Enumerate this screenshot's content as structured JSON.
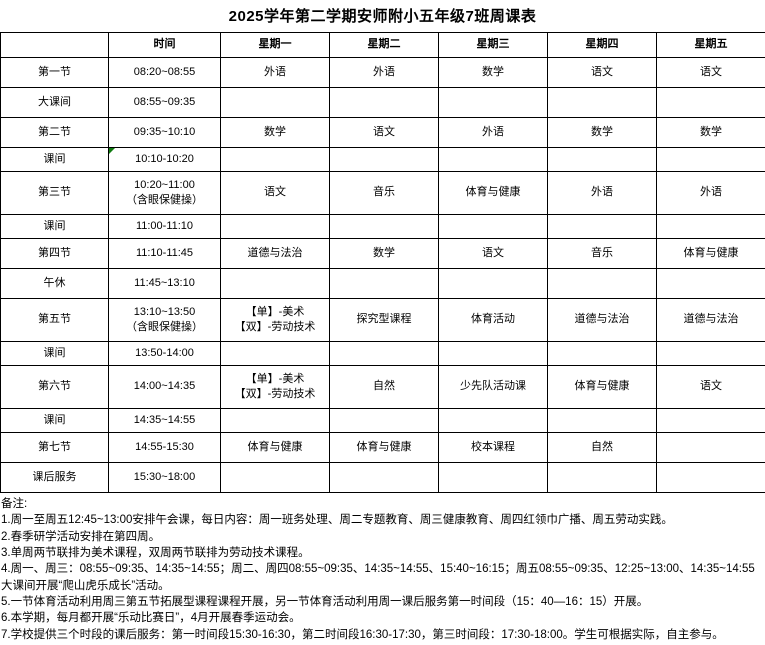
{
  "title": "2025学年第二学期安师附小五年级7班周课表",
  "colors": {
    "border": "#000000",
    "marker_green": "#0f7b0f",
    "text": "#000000",
    "background": "#ffffff"
  },
  "table": {
    "headers": [
      "",
      "时间",
      "星期一",
      "星期二",
      "星期三",
      "星期四",
      "星期五"
    ],
    "rows": [
      {
        "label": "第一节",
        "time": "08:20~08:55",
        "cells": [
          "外语",
          "外语",
          "数学",
          "语文",
          "语文"
        ],
        "kind": "normal",
        "marker": false
      },
      {
        "label": "大课间",
        "time": "08:55~09:35",
        "cells": [
          "",
          "",
          "",
          "",
          ""
        ],
        "kind": "normal",
        "marker": false
      },
      {
        "label": "第二节",
        "time": "09:35~10:10",
        "cells": [
          "数学",
          "语文",
          "外语",
          "数学",
          "数学"
        ],
        "kind": "normal",
        "marker": false
      },
      {
        "label": "课间",
        "time": "10:10-10:20",
        "cells": [
          "",
          "",
          "",
          "",
          ""
        ],
        "kind": "break",
        "marker": true
      },
      {
        "label": "第三节",
        "time": "10:20~11:00\n（含眼保健操）",
        "cells": [
          "语文",
          "音乐",
          "体育与健康",
          "外语",
          "外语"
        ],
        "kind": "tall",
        "marker": false
      },
      {
        "label": "课间",
        "time": "11:00-11:10",
        "cells": [
          "",
          "",
          "",
          "",
          ""
        ],
        "kind": "break",
        "marker": false
      },
      {
        "label": "第四节",
        "time": "11:10-11:45",
        "cells": [
          "道德与法治",
          "数学",
          "语文",
          "音乐",
          "体育与健康"
        ],
        "kind": "normal",
        "marker": false
      },
      {
        "label": "午休",
        "time": "11:45~13:10",
        "cells": [
          "",
          "",
          "",
          "",
          ""
        ],
        "kind": "normal",
        "marker": false
      },
      {
        "label": "第五节",
        "time": "13:10~13:50\n（含眼保健操）",
        "cells": [
          "【单】-美术\n【双】-劳动技术",
          "探究型课程",
          "体育活动",
          "道德与法治",
          "道德与法治"
        ],
        "kind": "tall",
        "marker": false
      },
      {
        "label": "课间",
        "time": "13:50-14:00",
        "cells": [
          "",
          "",
          "",
          "",
          ""
        ],
        "kind": "break",
        "marker": false
      },
      {
        "label": "第六节",
        "time": "14:00~14:35",
        "cells": [
          "【单】-美术\n【双】-劳动技术",
          "自然",
          "少先队活动课",
          "体育与健康",
          "语文"
        ],
        "kind": "tall",
        "marker": false
      },
      {
        "label": "课间",
        "time": "14:35~14:55",
        "cells": [
          "",
          "",
          "",
          "",
          ""
        ],
        "kind": "break",
        "marker": false
      },
      {
        "label": "第七节",
        "time": "14:55-15:30",
        "cells": [
          "体育与健康",
          "体育与健康",
          "校本课程",
          "自然",
          ""
        ],
        "kind": "normal",
        "marker": false
      },
      {
        "label": "课后服务",
        "time": "15:30~18:00",
        "cells": [
          "",
          "",
          "",
          "",
          ""
        ],
        "kind": "normal",
        "marker": false
      }
    ]
  },
  "notes": {
    "heading": "备注:",
    "items": [
      "1.周一至周五12:45~13:00安排午会课，每日内容：周一班务处理、周二专题教育、周三健康教育、周四红领巾广播、周五劳动实践。",
      "2.春季研学活动安排在第四周。",
      "3.单周两节联排为美术课程，双周两节联排为劳动技术课程。",
      "4.周一、周三：08:55~09:35、14:35~14:55；周二、周四08:55~09:35、14:35~14:55、15:40~16:15；周五08:55~09:35、12:25~13:00、14:35~14:55大课间开展“爬山虎乐成长”活动。",
      "5.一节体育活动利用周三第五节拓展型课程课程开展，另一节体育活动利用周一课后服务第一时间段（15：40—16：15）开展。",
      "6.本学期，每月都开展“乐动比赛日”，4月开展春季运动会。",
      "7.学校提供三个时段的课后服务：第一时间段15:30-16:30，第二时间段16:30-17:30，第三时间段：17:30-18:00。学生可根据实际，自主参与。"
    ]
  }
}
